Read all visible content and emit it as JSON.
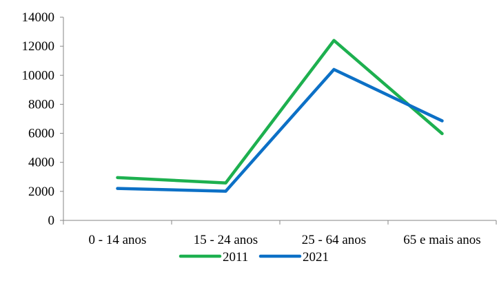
{
  "chart_data": {
    "type": "line",
    "categories": [
      "0 - 14 anos",
      "15 - 24 anos",
      "25 - 64 anos",
      "65 e mais  anos"
    ],
    "series": [
      {
        "name": "2011",
        "values": [
          2950,
          2580,
          12400,
          5980
        ],
        "color": "#1db04f"
      },
      {
        "name": "2021",
        "values": [
          2200,
          2010,
          10400,
          6860
        ],
        "color": "#0c70c6"
      }
    ],
    "yticks": [
      0,
      2000,
      4000,
      6000,
      8000,
      10000,
      12000,
      14000
    ],
    "ylim": [
      0,
      14000
    ],
    "grid": false,
    "legend_position": "bottom"
  }
}
